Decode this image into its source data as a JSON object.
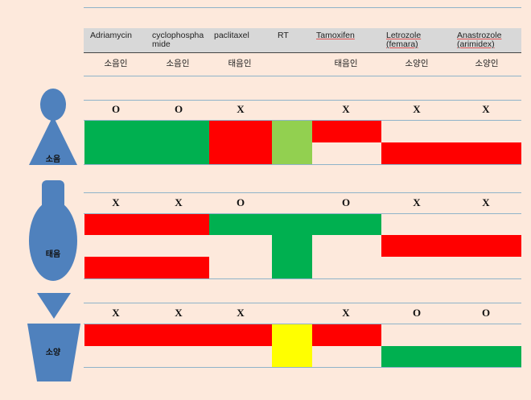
{
  "drugs": [
    {
      "name": "Adriamycin",
      "constitution": "소음인"
    },
    {
      "name": "cyclophospha mide",
      "constitution": "소음인"
    },
    {
      "name": "paclitaxel",
      "constitution": "태음인"
    },
    {
      "name": "RT",
      "constitution": ""
    },
    {
      "name": "Tamoxifen",
      "constitution": "태음인"
    },
    {
      "name": "Letrozole (femara)",
      "constitution": "소양인"
    },
    {
      "name": "Anastrozole (arimidex)",
      "constitution": "소양인"
    }
  ],
  "groups": [
    {
      "label": "소음",
      "marks": [
        "O",
        "O",
        "X",
        "",
        "X",
        "X",
        "X"
      ]
    },
    {
      "label": "태음",
      "marks": [
        "X",
        "X",
        "O",
        "",
        "O",
        "X",
        "X"
      ]
    },
    {
      "label": "소양",
      "marks": [
        "X",
        "X",
        "X",
        "",
        "X",
        "O",
        "O"
      ]
    }
  ],
  "colors": {
    "background": "#fde9dc",
    "bad": "#ff0000",
    "good": "#00b050",
    "rt_soeum": "#92d050",
    "rt_soyang": "#ffff00",
    "figure": "#4f81bd"
  }
}
